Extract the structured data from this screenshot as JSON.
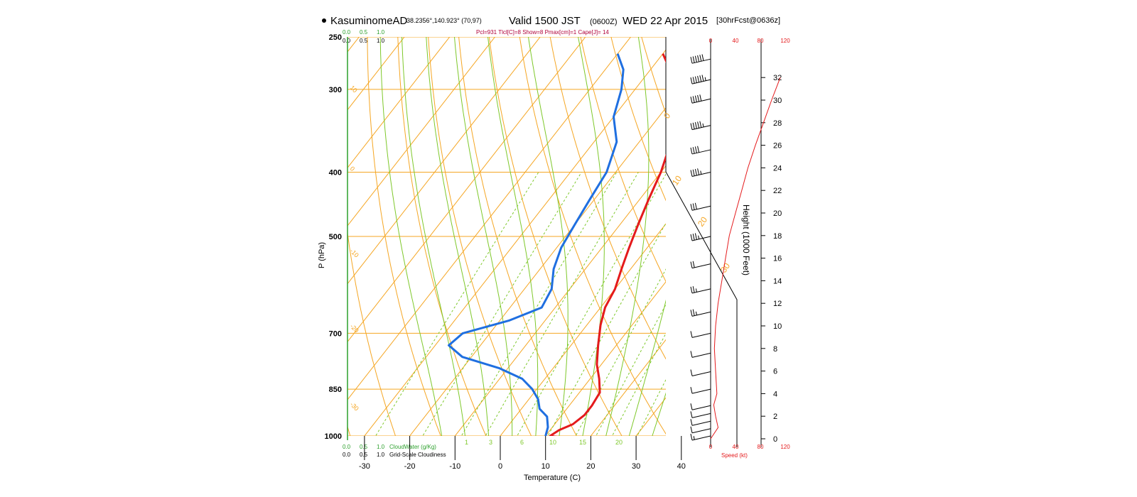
{
  "header": {
    "station": "KasuminomeAD",
    "coords": "38.2356°,140.923° (70,97)",
    "valid": "Valid 1500 JST",
    "zulu": "(0600Z)",
    "date": "WED 22 Apr 2015",
    "fcst": "[30hrFcst@0636z]",
    "indices": "Pcl=931 Tlcl[C]=8 Show=8 Pmax[cm]=1 Cape[J]= 14"
  },
  "labels": {
    "pressure_axis": "P (hPa)",
    "temperature_axis": "Temperature (C)",
    "height_axis": "Height (1000 Feet)",
    "speed_axis": "Speed (kt)",
    "cloud_water": "CloudWater (g/Kg)",
    "cloudiness": "Grid-Scale Cloudiness",
    "scale_ticks": [
      "0.0",
      "0.5",
      "1.0"
    ],
    "speed_ticks": [
      "0",
      "40",
      "80",
      "120"
    ]
  },
  "chart_data": {
    "type": "line",
    "title": "KasuminomeAD Valid 1500 JST (0600Z) WED 22 Apr 2015",
    "xlabel": "Temperature (C)",
    "ylabel": "P (hPa)",
    "xlim": [
      -30,
      40
    ],
    "ylim": [
      1000,
      250
    ],
    "y_scale": "log",
    "x_ticks": [
      "-30",
      "-20",
      "-10",
      "0",
      "10",
      "20",
      "30",
      "40"
    ],
    "y_ticks": [
      "250",
      "300",
      "400",
      "500",
      "700",
      "850",
      "1000"
    ],
    "height_ticks": [
      "0",
      "2",
      "4",
      "6",
      "8",
      "10",
      "12",
      "14",
      "16",
      "18",
      "20",
      "22",
      "24",
      "26",
      "28",
      "30",
      "32"
    ],
    "isotherm_labels": [
      "-30",
      "-20",
      "-10",
      "0",
      "10",
      "20",
      "30",
      "40"
    ],
    "dry_adiabat_labels": [
      "10",
      "0",
      "-10",
      "-20",
      "-30"
    ],
    "mixing_ratio_labels": [
      "1",
      "3",
      "6",
      "10",
      "15",
      "20"
    ],
    "series": [
      {
        "name": "Temperature",
        "color": "#e41a1c",
        "points": [
          [
            16,
            1010
          ],
          [
            11,
            1000
          ],
          [
            12,
            980
          ],
          [
            14,
            960
          ],
          [
            15,
            930
          ],
          [
            15,
            900
          ],
          [
            14.5,
            860
          ],
          [
            12,
            820
          ],
          [
            9,
            780
          ],
          [
            6,
            730
          ],
          [
            3,
            680
          ],
          [
            1,
            640
          ],
          [
            0,
            600
          ],
          [
            -2,
            560
          ],
          [
            -4,
            520
          ],
          [
            -6,
            480
          ],
          [
            -8,
            440
          ],
          [
            -10,
            400
          ],
          [
            -13,
            360
          ],
          [
            -16,
            330
          ],
          [
            -19,
            310
          ],
          [
            -23,
            290
          ],
          [
            -30,
            265
          ]
        ]
      },
      {
        "name": "Dewpoint",
        "color": "#1f6fe0",
        "points": [
          [
            11,
            1010
          ],
          [
            10,
            1000
          ],
          [
            9,
            970
          ],
          [
            7,
            935
          ],
          [
            4,
            910
          ],
          [
            2,
            880
          ],
          [
            -1,
            850
          ],
          [
            -5,
            820
          ],
          [
            -12,
            790
          ],
          [
            -22,
            760
          ],
          [
            -27,
            730
          ],
          [
            -26,
            700
          ],
          [
            -18,
            670
          ],
          [
            -13,
            640
          ],
          [
            -14,
            600
          ],
          [
            -17,
            560
          ],
          [
            -19,
            520
          ],
          [
            -20,
            480
          ],
          [
            -21,
            440
          ],
          [
            -22,
            400
          ],
          [
            -25,
            360
          ],
          [
            -30,
            330
          ],
          [
            -33,
            300
          ],
          [
            -36,
            280
          ],
          [
            -40,
            265
          ]
        ]
      },
      {
        "name": "Wind speed",
        "axis": "speed_height",
        "color": "#e41a1c",
        "points": [
          [
            0,
            0
          ],
          [
            12,
            1
          ],
          [
            8,
            2
          ],
          [
            5,
            3
          ],
          [
            10,
            4
          ],
          [
            8,
            6
          ],
          [
            6,
            8
          ],
          [
            8,
            10
          ],
          [
            12,
            12
          ],
          [
            18,
            14
          ],
          [
            24,
            16
          ],
          [
            30,
            18
          ],
          [
            40,
            20
          ],
          [
            50,
            22
          ],
          [
            60,
            24
          ],
          [
            72,
            26
          ],
          [
            85,
            28
          ],
          [
            98,
            30
          ],
          [
            112,
            32
          ]
        ]
      }
    ],
    "wind_barbs": [
      {
        "p": 1000,
        "speed": 5
      },
      {
        "p": 975,
        "speed": 10
      },
      {
        "p": 950,
        "speed": 10
      },
      {
        "p": 925,
        "speed": 10
      },
      {
        "p": 900,
        "speed": 10
      },
      {
        "p": 850,
        "speed": 10
      },
      {
        "p": 800,
        "speed": 10
      },
      {
        "p": 750,
        "speed": 10
      },
      {
        "p": 700,
        "speed": 10
      },
      {
        "p": 650,
        "speed": 15
      },
      {
        "p": 600,
        "speed": 15
      },
      {
        "p": 550,
        "speed": 20
      },
      {
        "p": 500,
        "speed": 25
      },
      {
        "p": 450,
        "speed": 30
      },
      {
        "p": 400,
        "speed": 35
      },
      {
        "p": 370,
        "speed": 40
      },
      {
        "p": 340,
        "speed": 45
      },
      {
        "p": 310,
        "speed": 50
      },
      {
        "p": 290,
        "speed": 55
      },
      {
        "p": 270,
        "speed": 60
      }
    ]
  }
}
